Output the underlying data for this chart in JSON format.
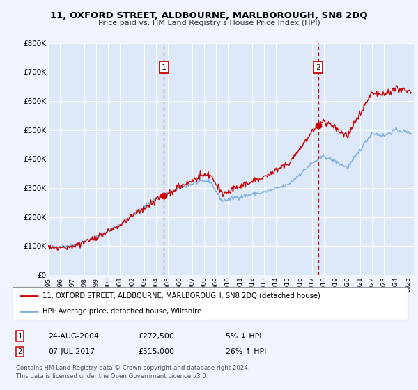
{
  "title": "11, OXFORD STREET, ALDBOURNE, MARLBOROUGH, SN8 2DQ",
  "subtitle": "Price paid vs. HM Land Registry's House Price Index (HPI)",
  "bg_color": "#f0f4ff",
  "plot_bg_color": "#dce8f8",
  "hpi_color": "#7ab0e0",
  "price_color": "#cc0000",
  "marker_color": "#cc0000",
  "sale1_date_num": 2004.648,
  "sale1_price": 272500,
  "sale1_label": "1",
  "sale2_date_num": 2017.516,
  "sale2_price": 515000,
  "sale2_label": "2",
  "ylim": [
    0,
    800000
  ],
  "xlim_start": 1995.0,
  "xlim_end": 2025.5,
  "yticks": [
    0,
    100000,
    200000,
    300000,
    400000,
    500000,
    600000,
    700000,
    800000
  ],
  "ytick_labels": [
    "£0",
    "£100K",
    "£200K",
    "£300K",
    "£400K",
    "£500K",
    "£600K",
    "£700K",
    "£800K"
  ],
  "legend_line1": "11, OXFORD STREET, ALDBOURNE, MARLBOROUGH, SN8 2DQ (detached house)",
  "legend_line2": "HPI: Average price, detached house, Wiltshire",
  "footnote1": "Contains HM Land Registry data © Crown copyright and database right 2024.",
  "footnote2": "This data is licensed under the Open Government Licence v3.0.",
  "table_row1_num": "1",
  "table_row1_date": "24-AUG-2004",
  "table_row1_price": "£272,500",
  "table_row1_pct": "5% ↓ HPI",
  "table_row2_num": "2",
  "table_row2_date": "07-JUL-2017",
  "table_row2_price": "£515,000",
  "table_row2_pct": "26% ↑ HPI"
}
